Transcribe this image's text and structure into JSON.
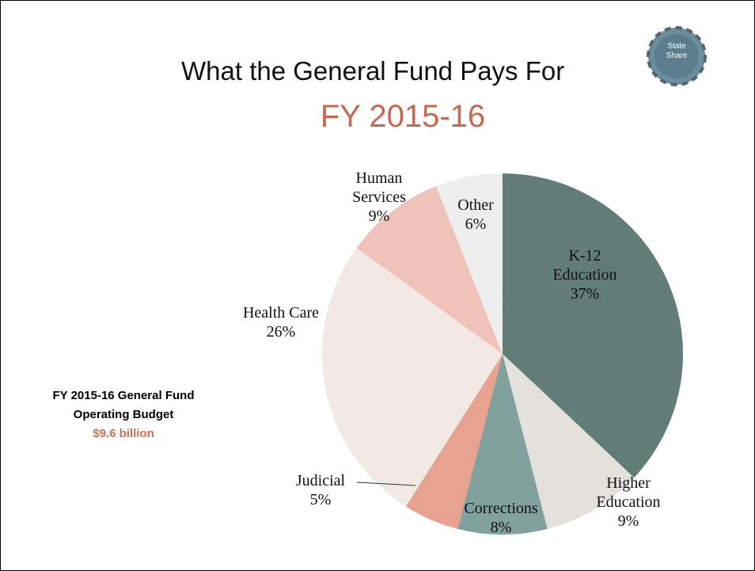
{
  "chart_data": {
    "type": "pie",
    "title": "What the General Fund Pays For",
    "subtitle": "FY 2015-16",
    "badge": "State Share",
    "note": {
      "title": "FY 2015-16 General Fund Operating Budget",
      "total": "$9.6 billion"
    },
    "categories": [
      "K-12 Education",
      "Higher Education",
      "Corrections",
      "Judicial",
      "Health Care",
      "Human Services",
      "Other"
    ],
    "values": [
      37,
      9,
      8,
      5,
      26,
      9,
      6
    ],
    "value_labels": [
      "37%",
      "9%",
      "8%",
      "5%",
      "26%",
      "9%",
      "6%"
    ],
    "colors": [
      "#627c78",
      "#e4e1dc",
      "#80a19d",
      "#e8a290",
      "#f2e9e4",
      "#efc3b9",
      "#eeeeee"
    ]
  }
}
